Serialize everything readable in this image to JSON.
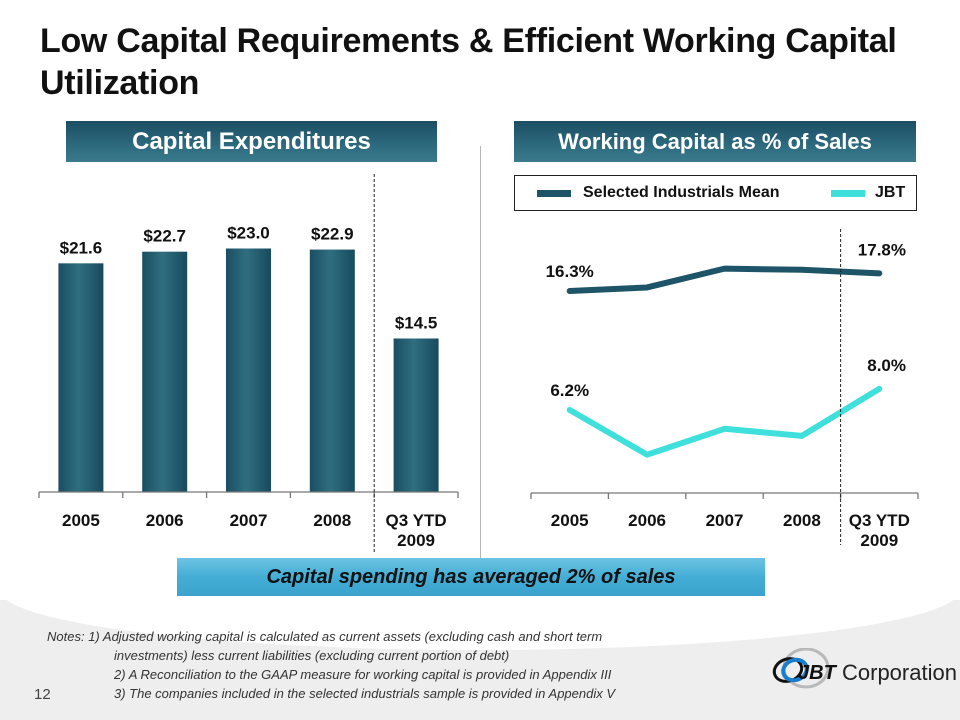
{
  "slide": {
    "title": "Low Capital Requirements & Efficient Working Capital Utilization",
    "page_number": "12",
    "callout": "Capital spending has averaged 2% of sales",
    "notes": {
      "prefix": "Notes:",
      "items": [
        "1) Adjusted working capital is calculated as current assets (excluding cash and short term",
        "investments) less current liabilities (excluding current portion of debt)",
        "2) A Reconciliation to the GAAP measure for working capital is provided in Appendix III",
        "3) The companies included in the selected industrials sample is provided in Appendix V"
      ]
    },
    "logo": {
      "mark": "JBT",
      "text": "Corporation"
    }
  },
  "colors": {
    "bar": "#1f5a6e",
    "mean_line": "#1e5468",
    "jbt_line": "#3fe0dc",
    "header_bg": "#245d72",
    "callout_bg": "#45aed6"
  },
  "chart_data": [
    {
      "type": "bar",
      "title": "Capital Expenditures",
      "categories": [
        "2005",
        "2006",
        "2007",
        "2008",
        "Q3 YTD 2009"
      ],
      "category_lines": [
        [
          "2005"
        ],
        [
          "2006"
        ],
        [
          "2007"
        ],
        [
          "2008"
        ],
        [
          "Q3 YTD",
          "2009"
        ]
      ],
      "values": [
        21.6,
        22.7,
        23.0,
        22.9,
        14.5
      ],
      "data_labels": [
        "$21.6",
        "$22.7",
        "$23.0",
        "$22.9",
        "$14.5"
      ],
      "xlabel": "",
      "ylabel": "",
      "ylim": [
        0,
        30
      ],
      "grid": false,
      "separator_before": "Q3 YTD 2009"
    },
    {
      "type": "line",
      "title": "Working Capital as % of Sales",
      "categories": [
        "2005",
        "2006",
        "2007",
        "2008",
        "Q3 YTD 2009"
      ],
      "category_lines": [
        [
          "2005"
        ],
        [
          "2006"
        ],
        [
          "2007"
        ],
        [
          "2008"
        ],
        [
          "Q3 YTD",
          "2009"
        ]
      ],
      "series": [
        {
          "name": "Selected Industrials Mean",
          "values": [
            16.3,
            16.6,
            18.2,
            18.1,
            17.8
          ],
          "labels": {
            "0": "16.3%",
            "4": "17.8%"
          }
        },
        {
          "name": "JBT",
          "values": [
            6.2,
            2.4,
            4.6,
            4.0,
            8.0
          ],
          "labels": {
            "0": "6.2%",
            "4": "8.0%"
          }
        }
      ],
      "xlabel": "",
      "ylabel": "",
      "ylim": [
        0,
        20
      ],
      "grid": false,
      "legend": "top",
      "separator_before": "Q3 YTD 2009"
    }
  ]
}
